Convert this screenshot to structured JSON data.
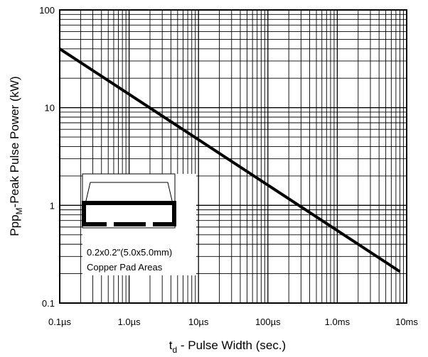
{
  "chart_data": {
    "type": "line",
    "title": "",
    "xscale": "log",
    "yscale": "log",
    "xlim_seconds": [
      1e-07,
      0.01
    ],
    "ylim_kW": [
      0.1,
      100
    ],
    "grid": true,
    "x_tick_values_seconds": [
      1e-07,
      1e-06,
      1e-05,
      0.0001,
      0.001,
      0.01
    ],
    "x_tick_labels": [
      "0.1µs",
      "1.0µs",
      "10µs",
      "100µs",
      "1.0ms",
      "10ms"
    ],
    "y_tick_values_kW": [
      0.1,
      1,
      10,
      100
    ],
    "y_tick_labels": [
      "0.1",
      "1",
      "10",
      "100"
    ],
    "xlabel_parts": {
      "pre": "t",
      "sub": "d",
      "post": " - Pulse Width (sec.)"
    },
    "ylabel_parts": {
      "pre": "Ppp",
      "sub": "M",
      "post": "-Peak Pulse Power (kW)"
    },
    "series": [
      {
        "x_seconds": [
          1e-07,
          0.008
        ],
        "y_kW": [
          40,
          0.21
        ]
      }
    ],
    "inset": {
      "line1": "0.2x0.2\"(5.0x5.0mm)",
      "line2": "Copper Pad Areas"
    }
  },
  "colors": {
    "line": "#000000",
    "grid": "#000000",
    "background": "#ffffff"
  }
}
